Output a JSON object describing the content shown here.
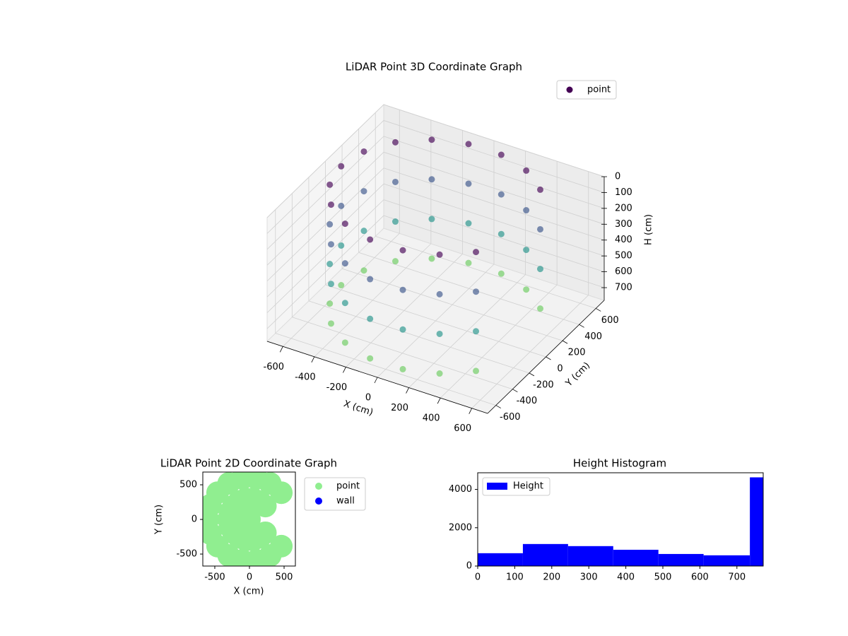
{
  "chart_data": [
    {
      "type": "scatter3d",
      "title": "LiDAR Point 3D Coordinate Graph",
      "xlabel": "X (cm)",
      "ylabel": "Y (cm)",
      "zlabel": "H (cm)",
      "colormap": "viridis",
      "legend": "upper right",
      "series": [
        {
          "name": "point",
          "color": "#440154",
          "x": [
            460,
            300,
            104,
            -104,
            -300,
            -460,
            -564,
            -600,
            -564,
            -460,
            -300,
            -104,
            104,
            300,
            460,
            460,
            300,
            104,
            -104,
            -300,
            -460,
            -564,
            -600,
            -564,
            -460,
            -300,
            -104,
            104,
            300,
            460,
            460,
            300,
            104,
            -104,
            -300,
            -460,
            -564,
            -600,
            -564,
            -460,
            -300,
            -104,
            104,
            300,
            460,
            460,
            300,
            104,
            -104,
            -300,
            -460,
            -564,
            -600,
            -564,
            -460,
            -300,
            -104,
            104,
            300,
            460
          ],
          "y": [
            386,
            520,
            591,
            591,
            520,
            386,
            205,
            0,
            -205,
            -386,
            -520,
            -591,
            -591,
            -520,
            -386,
            386,
            520,
            591,
            591,
            520,
            386,
            205,
            0,
            -205,
            -386,
            -520,
            -591,
            -591,
            -520,
            -386,
            386,
            520,
            591,
            591,
            520,
            386,
            205,
            0,
            -205,
            -386,
            -520,
            -591,
            -591,
            -520,
            -386,
            386,
            520,
            591,
            591,
            520,
            386,
            205,
            0,
            -205,
            -386,
            -520,
            -591,
            -591,
            -520,
            -386
          ],
          "z": [
            0,
            0,
            0,
            0,
            0,
            0,
            0,
            0,
            0,
            0,
            0,
            0,
            0,
            0,
            0,
            250,
            250,
            250,
            250,
            250,
            250,
            250,
            250,
            250,
            250,
            250,
            250,
            250,
            250,
            250,
            500,
            500,
            500,
            500,
            500,
            500,
            500,
            500,
            500,
            500,
            500,
            500,
            500,
            500,
            500,
            750,
            750,
            750,
            750,
            750,
            750,
            750,
            750,
            750,
            750,
            750,
            750,
            750,
            750,
            750
          ]
        }
      ],
      "xlim": [
        -700,
        700
      ],
      "ylim": [
        -700,
        700
      ],
      "zlim": [
        780,
        0
      ],
      "xticks": [
        -600,
        -400,
        -200,
        0,
        200,
        400,
        600
      ],
      "yticks": [
        -600,
        -400,
        -200,
        0,
        200,
        400,
        600
      ],
      "zticks": [
        0,
        100,
        200,
        300,
        400,
        500,
        600,
        700
      ],
      "grid": true
    },
    {
      "type": "scatter",
      "title": "LiDAR Point 2D Coordinate Graph",
      "xlabel": "X (cm)",
      "ylabel": "Y (cm)",
      "legend": "outside right",
      "series": [
        {
          "name": "point",
          "color": "#90ee90",
          "x": [
            460,
            300,
            104,
            -104,
            -300,
            -460,
            -564,
            -600,
            -564,
            -460,
            -300,
            -104,
            104,
            300,
            460,
            230,
            150,
            52,
            -52,
            -150,
            -230,
            -282,
            -300,
            -282,
            -230,
            -150,
            -52,
            52,
            150,
            230,
            0
          ],
          "y": [
            386,
            520,
            591,
            591,
            520,
            386,
            205,
            0,
            -205,
            -386,
            -520,
            -591,
            -591,
            -520,
            -386,
            193,
            260,
            296,
            296,
            260,
            193,
            103,
            0,
            -103,
            -193,
            -260,
            -296,
            -296,
            -260,
            -193,
            0
          ]
        },
        {
          "name": "wall",
          "color": "#0000ff",
          "x": [],
          "y": []
        }
      ],
      "xlim": [
        -673,
        663
      ],
      "ylim": [
        -673,
        684
      ],
      "xticks": [
        -500,
        0,
        500
      ],
      "yticks": [
        -500,
        0,
        500
      ]
    },
    {
      "type": "histogram",
      "title": "Height Histogram",
      "legend": "upper left",
      "bins": [
        0,
        122,
        244,
        366,
        488,
        610,
        735,
        771
      ],
      "series": [
        {
          "name": "Height",
          "color": "#0000ff",
          "values": [
            670,
            1150,
            1040,
            850,
            630,
            560,
            4630
          ]
        }
      ],
      "xlim": [
        0,
        771
      ],
      "ylim": [
        0,
        4870
      ],
      "xticks": [
        0,
        100,
        200,
        300,
        400,
        500,
        600,
        700
      ],
      "yticks": [
        0,
        2000,
        4000
      ]
    }
  ]
}
